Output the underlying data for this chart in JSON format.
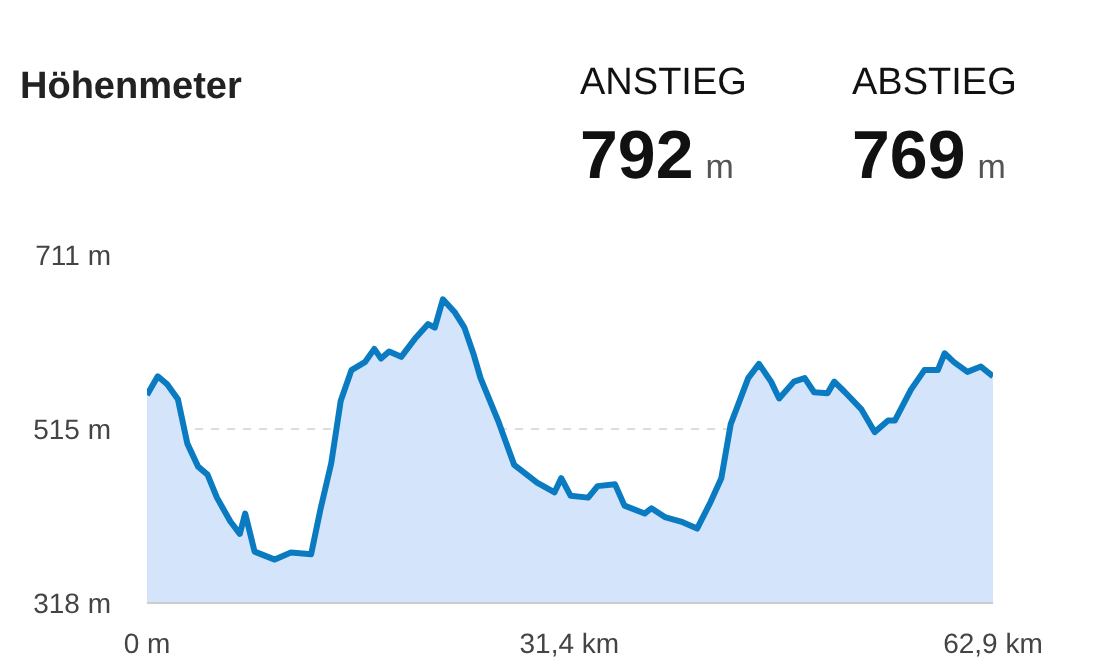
{
  "chart_data": {
    "type": "area",
    "title": "Höhenmeter",
    "annotations": [
      "ANSTIEG",
      "792 m",
      "ABSTIEG",
      "769 m"
    ],
    "x": [
      0,
      0.8,
      1.5,
      2.3,
      3.0,
      3.8,
      4.5,
      5.2,
      6.2,
      6.9,
      7.3,
      8.0,
      9.5,
      10.7,
      12.2,
      12.9,
      13.7,
      14.4,
      15.2,
      16.2,
      16.9,
      17.4,
      18.0,
      18.9,
      19.9,
      20.9,
      21.4,
      22.0,
      22.9,
      23.6,
      24.3,
      24.8,
      26.1,
      27.3,
      29.0,
      30.3,
      30.8,
      31.5,
      32.8,
      33.5,
      34.8,
      35.5,
      37.0,
      37.5,
      38.5,
      39.7,
      40.9,
      41.9,
      42.7,
      43.4,
      44.7,
      45.5,
      46.4,
      47.0,
      48.1,
      48.9,
      49.6,
      50.6,
      51.1,
      51.9,
      53.1,
      54.1,
      55.1,
      55.6,
      56.8,
      57.8,
      58.8,
      59.3,
      60.0,
      61.0,
      62.0,
      62.9
    ],
    "series": [
      {
        "color": "#0b7bc1",
        "values": [
          553,
          574,
          565,
          548,
          498,
          472,
          463,
          437,
          410,
          396,
          419,
          376,
          367,
          375,
          373,
          424,
          476,
          546,
          581,
          590,
          605,
          594,
          602,
          596,
          616,
          633,
          629,
          661,
          646,
          629,
          598,
          572,
          524,
          474,
          454,
          443,
          459,
          439,
          437,
          450,
          452,
          428,
          419,
          425,
          415,
          410,
          402,
          432,
          459,
          520,
          572,
          588,
          568,
          549,
          568,
          572,
          556,
          555,
          568,
          556,
          537,
          511,
          524,
          524,
          559,
          581,
          581,
          600,
          590,
          579,
          585,
          574
        ]
      }
    ],
    "xlim": [
      0,
      62.9
    ],
    "ylim": [
      318,
      711
    ],
    "xticks": [
      {
        "value": 0,
        "label": "0 m"
      },
      {
        "value": 31.4,
        "label": "31,4 km"
      },
      {
        "value": 62.9,
        "label": "62,9 km"
      }
    ],
    "yticks": [
      {
        "value": 318,
        "label": "318 m"
      },
      {
        "value": 515,
        "label": "515 m"
      },
      {
        "value": 711,
        "label": "711 m"
      }
    ],
    "grid": "y"
  }
}
